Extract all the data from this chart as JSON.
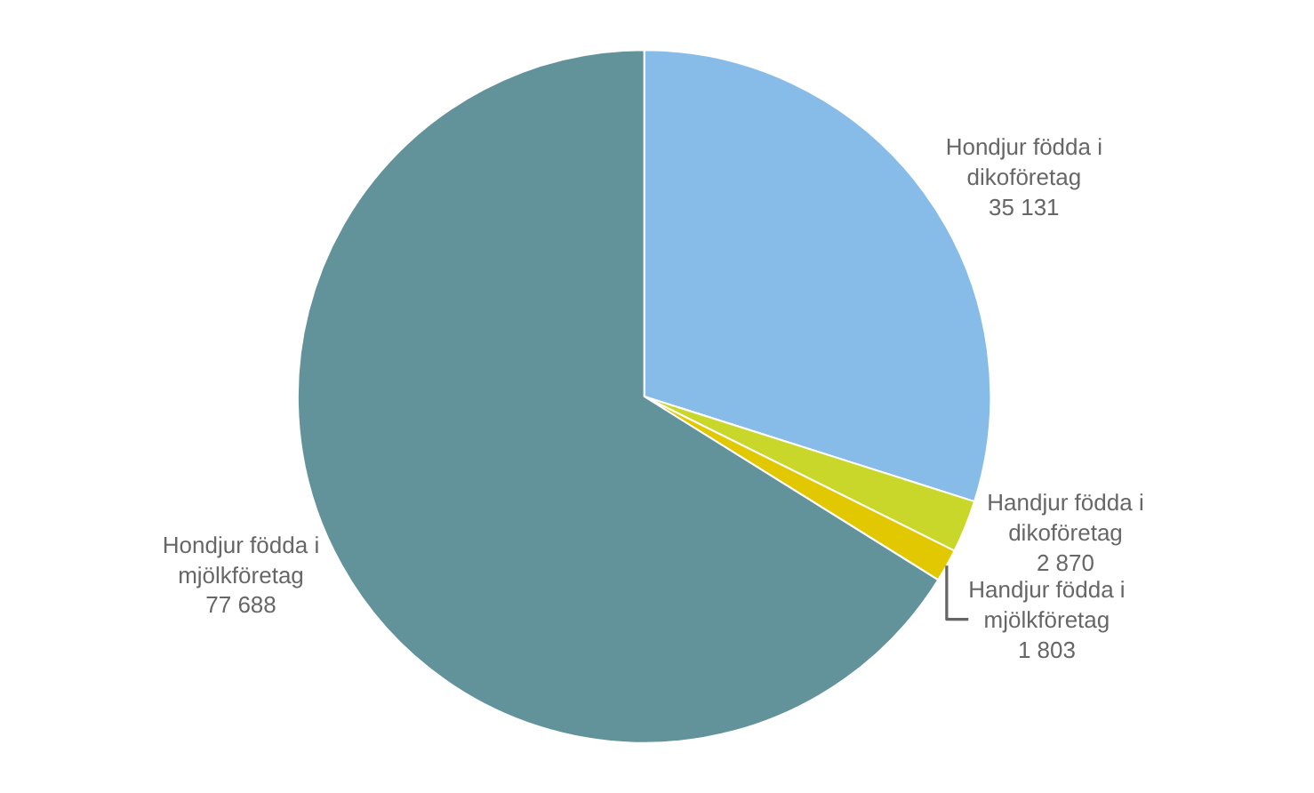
{
  "chart_data": {
    "type": "pie",
    "categories": [
      "Hondjur födda i dikoföretag",
      "Handjur födda i dikoföretag",
      "Handjur födda i mjölkföretag",
      "Hondjur födda i mjölkföretag"
    ],
    "values": [
      35131,
      2870,
      1803,
      77688
    ],
    "value_labels": [
      "35 131",
      "2 870",
      "1 803",
      "77 688"
    ],
    "colors": [
      "#87bce9",
      "#c9d62a",
      "#e2c800",
      "#62939b"
    ],
    "legend": false
  }
}
